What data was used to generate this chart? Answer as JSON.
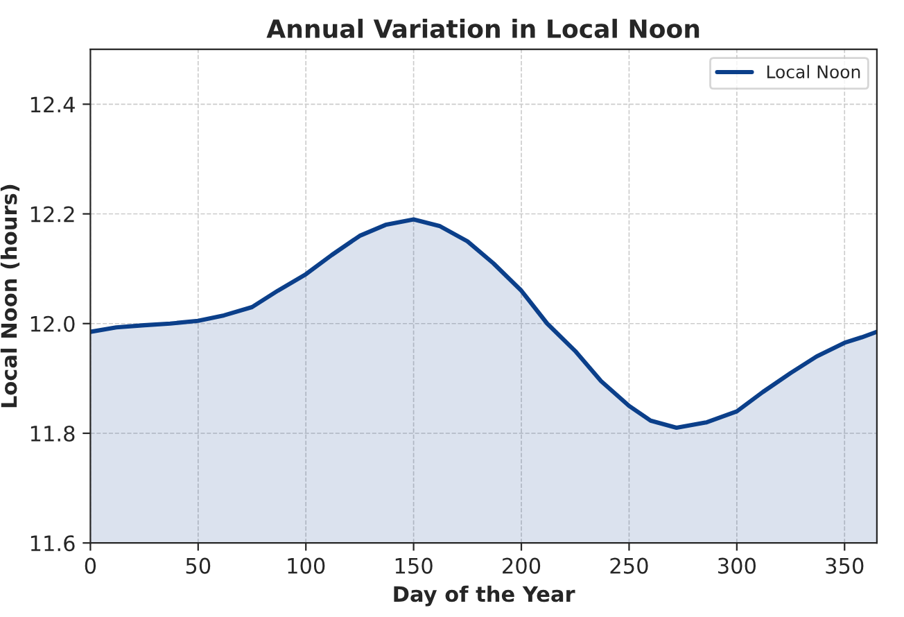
{
  "chart_data": {
    "type": "area",
    "title": "Annual Variation in Local Noon",
    "xlabel": "Day of the Year",
    "ylabel": "Local Noon (hours)",
    "x": [
      0,
      12,
      25,
      37,
      50,
      62,
      75,
      87,
      100,
      112,
      125,
      137,
      150,
      162,
      175,
      187,
      200,
      212,
      225,
      237,
      250,
      260,
      272,
      286,
      300,
      312,
      325,
      337,
      350,
      358,
      365
    ],
    "series": [
      {
        "name": "Local Noon",
        "color": "#0b3f8a",
        "values": [
          11.985,
          11.993,
          11.997,
          12.0,
          12.005,
          12.015,
          12.03,
          12.06,
          12.09,
          12.125,
          12.16,
          12.18,
          12.19,
          12.178,
          12.15,
          12.11,
          12.06,
          12.0,
          11.95,
          11.895,
          11.85,
          11.823,
          11.81,
          11.82,
          11.84,
          11.875,
          11.91,
          11.94,
          11.965,
          11.975,
          11.985
        ]
      }
    ],
    "xlim": [
      0,
      365
    ],
    "xticks": [
      0,
      50,
      100,
      150,
      200,
      250,
      300,
      350
    ],
    "ylim": [
      11.6,
      12.5
    ],
    "yticks": [
      {
        "value": 11.6,
        "label": "11.6"
      },
      {
        "value": 11.8,
        "label": "11.8"
      },
      {
        "value": 12.0,
        "label": "12.0"
      },
      {
        "value": 12.2,
        "label": "12.2"
      },
      {
        "value": 12.4,
        "label": "12.4"
      }
    ],
    "grid": true,
    "legend": "top right",
    "line_style": "solid"
  }
}
